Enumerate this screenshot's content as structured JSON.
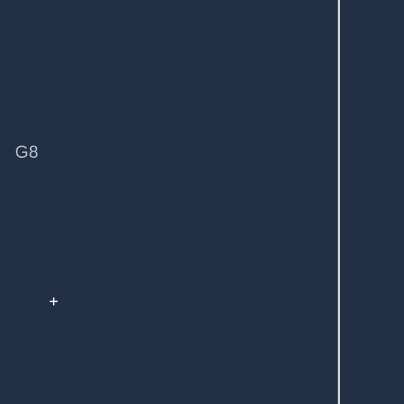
{
  "cell": {
    "label": "G8"
  },
  "icons": {
    "add": "plus-icon"
  },
  "colors": {
    "background": "#223046",
    "label_text": "#b7bec9",
    "divider": "#c9ced6",
    "icon": "#e6e9ee"
  }
}
